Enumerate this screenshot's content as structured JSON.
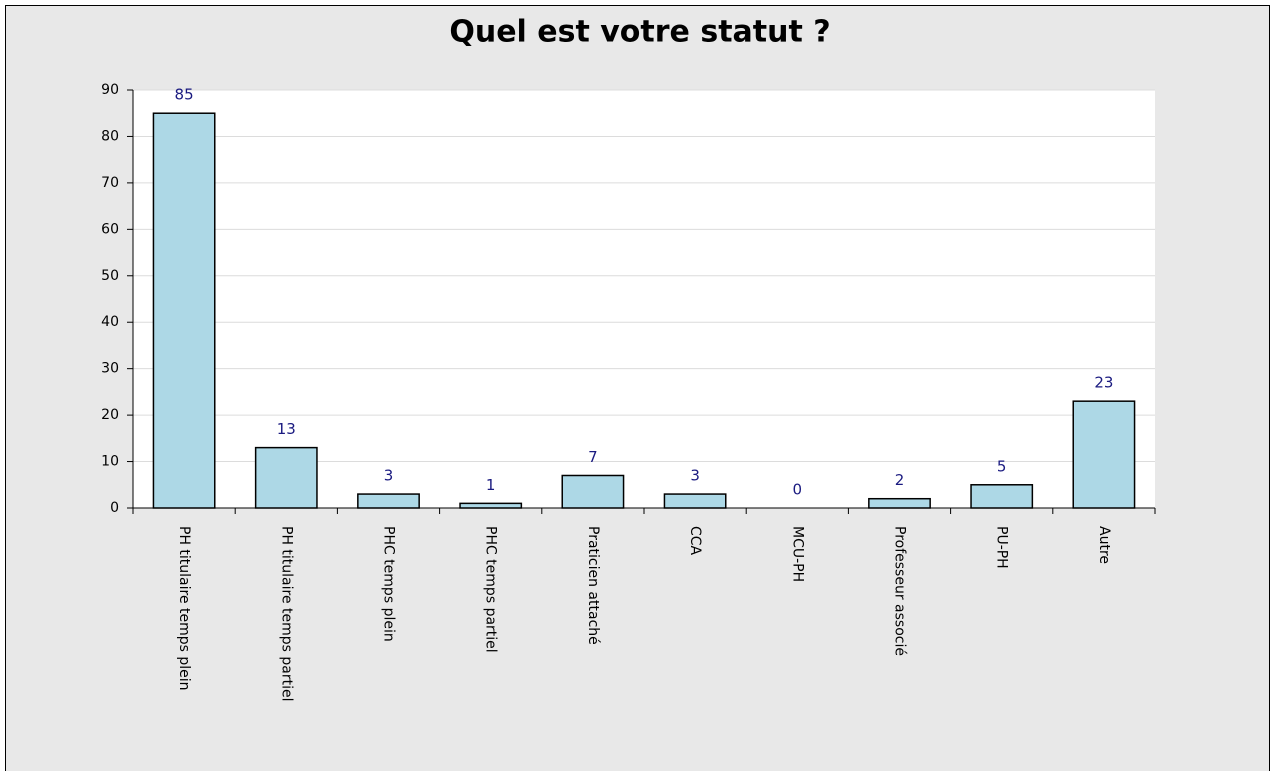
{
  "chart_data": {
    "type": "bar",
    "title": "Quel est votre statut ?",
    "categories": [
      "PH titulaire temps plein",
      "PH titulaire temps partiel",
      "PHC temps plein",
      "PHC temps partiel",
      "Praticien attaché",
      "CCA",
      "MCU-PH",
      "Professeur associé",
      "PU-PH",
      "Autre"
    ],
    "values": [
      85,
      13,
      3,
      1,
      7,
      3,
      0,
      2,
      5,
      23
    ],
    "color": "#add8e6",
    "ylim": [
      0,
      90
    ],
    "yticks": [
      0,
      10,
      20,
      30,
      40,
      50,
      60,
      70,
      80,
      90
    ],
    "grid": true
  }
}
